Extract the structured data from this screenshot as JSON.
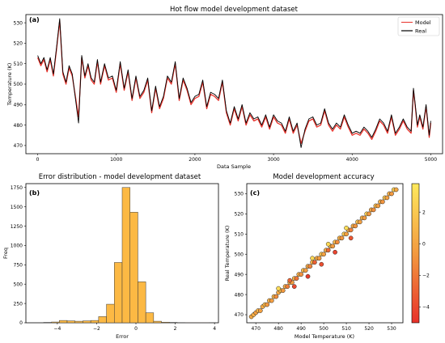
{
  "chart_data": [
    {
      "type": "line",
      "panel_label": "(a)",
      "title": "Hot flow model development dataset",
      "xlabel": "Data Sample",
      "ylabel": "Temperature (K)",
      "xlim": [
        -150,
        5150
      ],
      "ylim": [
        466,
        534
      ],
      "xticks": [
        0,
        1000,
        2000,
        3000,
        4000,
        5000
      ],
      "yticks": [
        470,
        480,
        490,
        500,
        510,
        520,
        530
      ],
      "legend_position": "top-right",
      "series": [
        {
          "name": "Model",
          "color": "#e8312a",
          "x": [
            0,
            40,
            80,
            120,
            160,
            200,
            240,
            280,
            320,
            360,
            400,
            440,
            480,
            520,
            560,
            600,
            640,
            680,
            720,
            760,
            800,
            850,
            900,
            950,
            1000,
            1050,
            1100,
            1150,
            1200,
            1250,
            1300,
            1350,
            1400,
            1450,
            1500,
            1550,
            1600,
            1650,
            1700,
            1750,
            1800,
            1850,
            1900,
            1950,
            2000,
            2050,
            2100,
            2150,
            2200,
            2250,
            2300,
            2350,
            2400,
            2450,
            2500,
            2550,
            2600,
            2650,
            2700,
            2750,
            2800,
            2850,
            2900,
            2950,
            3000,
            3050,
            3100,
            3150,
            3200,
            3250,
            3300,
            3350,
            3400,
            3450,
            3500,
            3550,
            3600,
            3650,
            3700,
            3750,
            3800,
            3850,
            3900,
            3950,
            4000,
            4050,
            4100,
            4150,
            4200,
            4250,
            4300,
            4350,
            4400,
            4450,
            4500,
            4550,
            4600,
            4650,
            4700,
            4750,
            4780,
            4800,
            4830,
            4860,
            4900,
            4940,
            4980,
            5000
          ],
          "y": [
            513,
            509,
            512,
            506,
            512,
            504,
            517,
            531,
            505,
            500,
            508,
            504,
            494,
            484,
            513,
            503,
            509,
            502,
            500,
            511,
            500,
            509,
            502,
            503,
            496,
            510,
            497,
            506,
            492,
            503,
            493,
            496,
            502,
            486,
            498,
            488,
            493,
            503,
            500,
            510,
            492,
            502,
            497,
            490,
            493,
            494,
            501,
            488,
            495,
            494,
            492,
            501,
            486,
            480,
            488,
            482,
            489,
            480,
            485,
            482,
            483,
            479,
            484,
            478,
            484,
            481,
            480,
            476,
            483,
            476,
            480,
            471,
            477,
            482,
            483,
            479,
            480,
            487,
            480,
            477,
            480,
            478,
            484,
            479,
            475,
            476,
            475,
            478,
            476,
            473,
            477,
            482,
            480,
            476,
            484,
            475,
            478,
            482,
            478,
            476,
            497,
            490,
            479,
            484,
            478,
            489,
            474,
            481
          ]
        },
        {
          "name": "Real",
          "color": "#000000",
          "x": [
            0,
            40,
            80,
            120,
            160,
            200,
            240,
            280,
            320,
            360,
            400,
            440,
            480,
            520,
            560,
            600,
            640,
            680,
            720,
            760,
            800,
            850,
            900,
            950,
            1000,
            1050,
            1100,
            1150,
            1200,
            1250,
            1300,
            1350,
            1400,
            1450,
            1500,
            1550,
            1600,
            1650,
            1700,
            1750,
            1800,
            1850,
            1900,
            1950,
            2000,
            2050,
            2100,
            2150,
            2200,
            2250,
            2300,
            2350,
            2400,
            2450,
            2500,
            2550,
            2600,
            2650,
            2700,
            2750,
            2800,
            2850,
            2900,
            2950,
            3000,
            3050,
            3100,
            3150,
            3200,
            3250,
            3300,
            3350,
            3400,
            3450,
            3500,
            3550,
            3600,
            3650,
            3700,
            3750,
            3800,
            3850,
            3900,
            3950,
            4000,
            4050,
            4100,
            4150,
            4200,
            4250,
            4300,
            4350,
            4400,
            4450,
            4500,
            4550,
            4600,
            4650,
            4700,
            4750,
            4780,
            4800,
            4830,
            4860,
            4900,
            4940,
            4980,
            5000
          ],
          "y": [
            514,
            510,
            513,
            507,
            513,
            505,
            518,
            532,
            506,
            501,
            509,
            505,
            493,
            481,
            514,
            504,
            510,
            503,
            501,
            512,
            501,
            510,
            503,
            504,
            497,
            511,
            498,
            507,
            493,
            504,
            494,
            497,
            503,
            487,
            499,
            489,
            494,
            504,
            501,
            511,
            493,
            503,
            498,
            491,
            494,
            495,
            502,
            489,
            496,
            495,
            493,
            502,
            487,
            481,
            489,
            483,
            490,
            481,
            486,
            483,
            484,
            480,
            485,
            479,
            485,
            482,
            481,
            477,
            484,
            477,
            481,
            469,
            478,
            483,
            484,
            480,
            481,
            488,
            481,
            478,
            481,
            479,
            485,
            480,
            476,
            477,
            476,
            479,
            477,
            474,
            478,
            483,
            481,
            477,
            485,
            476,
            479,
            483,
            479,
            477,
            498,
            491,
            480,
            485,
            479,
            490,
            475,
            482
          ]
        }
      ]
    },
    {
      "type": "bar",
      "panel_label": "(b)",
      "title": "Error distribution - model development dataset",
      "xlabel": "Error",
      "ylabel": "Freq",
      "xlim": [
        -5.6,
        4.2
      ],
      "ylim": [
        0,
        1800
      ],
      "xticks": [
        -4,
        -2,
        0,
        2,
        4
      ],
      "yticks": [
        0,
        250,
        500,
        750,
        1000,
        1250,
        1500,
        1750
      ],
      "bar_color": "#fcb944",
      "bin_edges": [
        -4.7,
        -4.3,
        -3.9,
        -3.5,
        -3.1,
        -2.7,
        -2.3,
        -1.9,
        -1.5,
        -1.1,
        -0.7,
        -0.3,
        0.1,
        0.5,
        0.9,
        1.3,
        1.7,
        2.1,
        2.5,
        2.9,
        3.3,
        3.7
      ],
      "values": [
        5,
        10,
        30,
        25,
        20,
        25,
        30,
        80,
        240,
        780,
        1750,
        1430,
        530,
        130,
        20,
        8,
        5,
        3,
        2,
        2,
        2
      ]
    },
    {
      "type": "scatter",
      "panel_label": "(c)",
      "title": "Model development accuracy",
      "xlabel": "Model Temperature (K)",
      "ylabel": "Real Temperature (K)",
      "xlim": [
        466,
        535
      ],
      "ylim": [
        466,
        535
      ],
      "xticks": [
        470,
        480,
        490,
        500,
        510,
        520,
        530
      ],
      "yticks": [
        470,
        480,
        490,
        500,
        510,
        520,
        530
      ],
      "colorbar": {
        "ticks": [
          2,
          0,
          -2,
          -4
        ],
        "range": [
          -5,
          3.8
        ],
        "colors": [
          "#e8312a",
          "#f39a3f",
          "#ffe95c"
        ]
      },
      "points": [
        [
          468,
          469,
          0.3
        ],
        [
          469,
          470,
          0.5
        ],
        [
          470,
          471,
          -0.4
        ],
        [
          471,
          472,
          0.8
        ],
        [
          472,
          472,
          -0.2
        ],
        [
          473,
          474,
          0.4
        ],
        [
          474,
          475,
          1.2
        ],
        [
          475,
          475,
          -0.7
        ],
        [
          476,
          477,
          0.6
        ],
        [
          477,
          477,
          -0.3
        ],
        [
          478,
          479,
          0.9
        ],
        [
          479,
          479,
          -1.1
        ],
        [
          480,
          481,
          0.2
        ],
        [
          481,
          482,
          1.5
        ],
        [
          482,
          482,
          -0.6
        ],
        [
          483,
          484,
          0.4
        ],
        [
          484,
          484,
          -1.8
        ],
        [
          485,
          486,
          0.7
        ],
        [
          486,
          486,
          -0.3
        ],
        [
          487,
          488,
          1.0
        ],
        [
          488,
          488,
          -2.2
        ],
        [
          489,
          490,
          0.5
        ],
        [
          490,
          490,
          -0.9
        ],
        [
          491,
          492,
          1.3
        ],
        [
          492,
          492,
          -0.4
        ],
        [
          493,
          494,
          0.2
        ],
        [
          494,
          494,
          -1.5
        ],
        [
          495,
          496,
          0.8
        ],
        [
          496,
          496,
          -3.0
        ],
        [
          497,
          498,
          0.3
        ],
        [
          498,
          498,
          -0.6
        ],
        [
          499,
          500,
          1.7
        ],
        [
          500,
          500,
          -0.2
        ],
        [
          501,
          502,
          0.4
        ],
        [
          502,
          502,
          -2.6
        ],
        [
          503,
          504,
          0.9
        ],
        [
          504,
          504,
          -0.5
        ],
        [
          505,
          506,
          1.1
        ],
        [
          506,
          506,
          -1.2
        ],
        [
          507,
          508,
          0.6
        ],
        [
          508,
          508,
          -0.8
        ],
        [
          509,
          510,
          2.0
        ],
        [
          510,
          510,
          -0.3
        ],
        [
          511,
          512,
          0.7
        ],
        [
          512,
          512,
          -1.6
        ],
        [
          513,
          514,
          0.4
        ],
        [
          514,
          514,
          -0.9
        ],
        [
          515,
          516,
          1.4
        ],
        [
          516,
          516,
          -0.2
        ],
        [
          517,
          518,
          0.8
        ],
        [
          518,
          518,
          -0.5
        ],
        [
          519,
          520,
          2.4
        ],
        [
          520,
          520,
          -0.7
        ],
        [
          521,
          522,
          0.3
        ],
        [
          522,
          522,
          -1.0
        ],
        [
          523,
          524,
          1.1
        ],
        [
          524,
          524,
          -0.4
        ],
        [
          525,
          526,
          0.6
        ],
        [
          526,
          526,
          -0.8
        ],
        [
          527,
          528,
          1.9
        ],
        [
          528,
          528,
          -0.2
        ],
        [
          529,
          530,
          0.5
        ],
        [
          530,
          530,
          -0.6
        ],
        [
          531,
          532,
          2.6
        ],
        [
          532,
          532,
          0.2
        ],
        [
          487,
          484,
          -4.0
        ],
        [
          493,
          489,
          -4.5
        ],
        [
          499,
          495,
          -3.8
        ],
        [
          505,
          501,
          -4.2
        ],
        [
          512,
          508,
          -3.5
        ],
        [
          480,
          483,
          3.0
        ],
        [
          495,
          498,
          2.8
        ],
        [
          510,
          513,
          3.2
        ],
        [
          502,
          505,
          2.9
        ],
        [
          485,
          487,
          -2.8
        ]
      ]
    }
  ]
}
